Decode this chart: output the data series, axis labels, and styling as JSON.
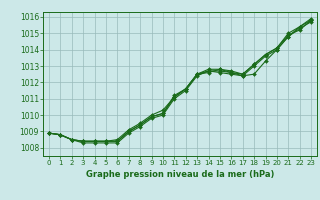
{
  "xlabel": "Graphe pression niveau de la mer (hPa)",
  "ylim": [
    1007.5,
    1016.3
  ],
  "xlim": [
    -0.5,
    23.5
  ],
  "yticks": [
    1008,
    1009,
    1010,
    1011,
    1012,
    1013,
    1014,
    1015,
    1016
  ],
  "xticks": [
    0,
    1,
    2,
    3,
    4,
    5,
    6,
    7,
    8,
    9,
    10,
    11,
    12,
    13,
    14,
    15,
    16,
    17,
    18,
    19,
    20,
    21,
    22,
    23
  ],
  "bg_color": "#cce8e8",
  "grid_color": "#99bbbb",
  "line_color": "#1a6b1a",
  "series": [
    [
      1008.9,
      1008.8,
      1008.5,
      1008.4,
      1008.4,
      1008.4,
      1008.4,
      1009.0,
      1009.4,
      1009.9,
      1010.1,
      1011.1,
      1011.6,
      1012.5,
      1012.6,
      1012.8,
      1012.6,
      1012.5,
      1013.1,
      1013.7,
      1014.1,
      1014.9,
      1015.2,
      1015.8
    ],
    [
      1008.9,
      1008.8,
      1008.5,
      1008.4,
      1008.4,
      1008.4,
      1008.4,
      1009.0,
      1009.4,
      1009.9,
      1010.1,
      1011.2,
      1011.6,
      1012.5,
      1012.8,
      1012.8,
      1012.7,
      1012.5,
      1013.1,
      1013.7,
      1014.1,
      1015.0,
      1015.4,
      1015.8
    ],
    [
      1008.9,
      1008.8,
      1008.5,
      1008.3,
      1008.3,
      1008.3,
      1008.3,
      1008.9,
      1009.3,
      1009.8,
      1010.0,
      1011.0,
      1011.5,
      1012.4,
      1012.7,
      1012.7,
      1012.6,
      1012.4,
      1013.0,
      1013.6,
      1014.0,
      1014.8,
      1015.3,
      1015.7
    ],
    [
      1008.9,
      1008.8,
      1008.5,
      1008.4,
      1008.4,
      1008.4,
      1008.5,
      1009.1,
      1009.5,
      1010.0,
      1010.3,
      1011.1,
      1011.6,
      1012.5,
      1012.7,
      1012.6,
      1012.5,
      1012.4,
      1012.5,
      1013.3,
      1014.0,
      1014.8,
      1015.4,
      1015.9
    ]
  ],
  "xlabel_fontsize": 6,
  "tick_fontsize": 5.5
}
